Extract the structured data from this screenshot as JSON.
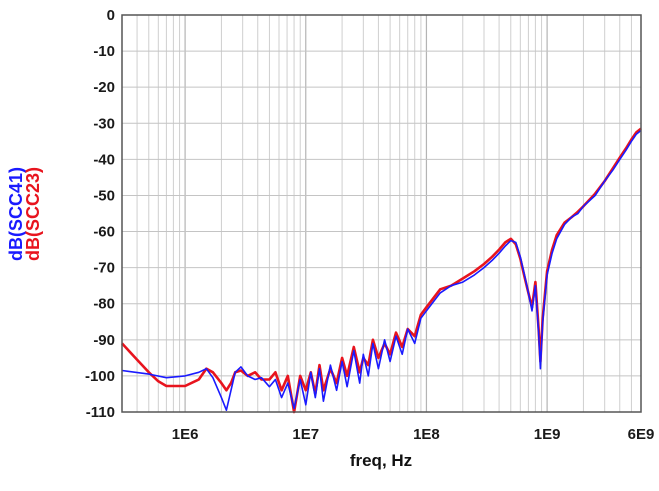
{
  "chart_data": {
    "type": "line",
    "xlabel": "freq, Hz",
    "ylabels": [
      {
        "text": "dB(SCC41)",
        "color": "#1a1aff"
      },
      {
        "text": "dB(SCC23)",
        "color": "#e8141e"
      }
    ],
    "x_scale": "log",
    "xlim": [
      300000,
      6000000000
    ],
    "ylim": [
      -110,
      0
    ],
    "x_ticks": [
      {
        "value": 1000000,
        "label": "1E6"
      },
      {
        "value": 10000000,
        "label": "1E7"
      },
      {
        "value": 100000000,
        "label": "1E8"
      },
      {
        "value": 1000000000,
        "label": "1E9"
      },
      {
        "value": 6000000000,
        "label": "6E9"
      }
    ],
    "y_ticks": [
      0,
      -10,
      -20,
      -30,
      -40,
      -50,
      -60,
      -70,
      -80,
      -90,
      -100,
      -110
    ],
    "grid": true,
    "series": [
      {
        "name": "dB(SCC41)",
        "color": "#1a1aff",
        "points": [
          [
            300000,
            -98.5
          ],
          [
            500000,
            -99.5
          ],
          [
            700000,
            -100.5
          ],
          [
            1000000,
            -100
          ],
          [
            1300000,
            -99
          ],
          [
            1500000,
            -98
          ],
          [
            1700000,
            -100.5
          ],
          [
            2000000,
            -106
          ],
          [
            2200000,
            -109.5
          ],
          [
            2400000,
            -104
          ],
          [
            2600000,
            -99
          ],
          [
            2900000,
            -97.5
          ],
          [
            3300000,
            -100
          ],
          [
            3800000,
            -101
          ],
          [
            4300000,
            -100.5
          ],
          [
            5000000,
            -103
          ],
          [
            5600000,
            -101
          ],
          [
            6300000,
            -106
          ],
          [
            7100000,
            -102
          ],
          [
            8000000,
            -109
          ],
          [
            9000000,
            -101
          ],
          [
            10000000,
            -108
          ],
          [
            11000000,
            -99
          ],
          [
            12000000,
            -106
          ],
          [
            13000000,
            -98
          ],
          [
            14000000,
            -107
          ],
          [
            16000000,
            -97
          ],
          [
            18000000,
            -104
          ],
          [
            20000000,
            -96
          ],
          [
            22000000,
            -103
          ],
          [
            25000000,
            -93
          ],
          [
            28000000,
            -102
          ],
          [
            30000000,
            -94
          ],
          [
            33000000,
            -100
          ],
          [
            36000000,
            -91
          ],
          [
            40000000,
            -98
          ],
          [
            45000000,
            -90
          ],
          [
            50000000,
            -96
          ],
          [
            56000000,
            -89
          ],
          [
            63000000,
            -94
          ],
          [
            70000000,
            -87
          ],
          [
            80000000,
            -91
          ],
          [
            90000000,
            -84
          ],
          [
            100000000,
            -82
          ],
          [
            130000000,
            -77
          ],
          [
            160000000,
            -75
          ],
          [
            200000000,
            -74
          ],
          [
            250000000,
            -72
          ],
          [
            300000000,
            -70
          ],
          [
            350000000,
            -68
          ],
          [
            400000000,
            -66
          ],
          [
            450000000,
            -64
          ],
          [
            500000000,
            -62.5
          ],
          [
            550000000,
            -63
          ],
          [
            600000000,
            -67
          ],
          [
            650000000,
            -72
          ],
          [
            700000000,
            -77
          ],
          [
            750000000,
            -82
          ],
          [
            800000000,
            -75
          ],
          [
            850000000,
            -88
          ],
          [
            880000000,
            -98
          ],
          [
            920000000,
            -85
          ],
          [
            1000000000,
            -72
          ],
          [
            1100000000,
            -66
          ],
          [
            1200000000,
            -62
          ],
          [
            1400000000,
            -58
          ],
          [
            1600000000,
            -56
          ],
          [
            1800000000,
            -55
          ],
          [
            2000000000,
            -53
          ],
          [
            2500000000,
            -50
          ],
          [
            3000000000,
            -46
          ],
          [
            3500000000,
            -43
          ],
          [
            4000000000,
            -40
          ],
          [
            4500000000,
            -37.5
          ],
          [
            5000000000,
            -35
          ],
          [
            5500000000,
            -33
          ],
          [
            6000000000,
            -32
          ]
        ]
      },
      {
        "name": "dB(SCC23)",
        "color": "#e8141e",
        "points": [
          [
            300000,
            -91
          ],
          [
            400000,
            -95.5
          ],
          [
            500000,
            -99
          ],
          [
            600000,
            -101.5
          ],
          [
            700000,
            -102.8
          ],
          [
            1000000,
            -102.8
          ],
          [
            1300000,
            -101
          ],
          [
            1500000,
            -98
          ],
          [
            1700000,
            -99
          ],
          [
            2000000,
            -102
          ],
          [
            2200000,
            -104
          ],
          [
            2400000,
            -102
          ],
          [
            2600000,
            -99
          ],
          [
            2900000,
            -98.5
          ],
          [
            3300000,
            -100
          ],
          [
            3800000,
            -99
          ],
          [
            4300000,
            -101
          ],
          [
            5000000,
            -101
          ],
          [
            5600000,
            -99
          ],
          [
            6300000,
            -104
          ],
          [
            7100000,
            -100
          ],
          [
            8000000,
            -110
          ],
          [
            9000000,
            -100
          ],
          [
            10000000,
            -104
          ],
          [
            11000000,
            -99
          ],
          [
            12000000,
            -105
          ],
          [
            13000000,
            -97
          ],
          [
            14000000,
            -104
          ],
          [
            16000000,
            -98
          ],
          [
            18000000,
            -102
          ],
          [
            20000000,
            -95
          ],
          [
            22000000,
            -100
          ],
          [
            25000000,
            -92
          ],
          [
            28000000,
            -99
          ],
          [
            30000000,
            -95
          ],
          [
            33000000,
            -97
          ],
          [
            36000000,
            -90
          ],
          [
            40000000,
            -95
          ],
          [
            45000000,
            -91
          ],
          [
            50000000,
            -94
          ],
          [
            56000000,
            -88
          ],
          [
            63000000,
            -92
          ],
          [
            70000000,
            -87
          ],
          [
            80000000,
            -89
          ],
          [
            90000000,
            -83
          ],
          [
            100000000,
            -81
          ],
          [
            130000000,
            -76
          ],
          [
            160000000,
            -75
          ],
          [
            200000000,
            -73
          ],
          [
            250000000,
            -71
          ],
          [
            300000000,
            -69
          ],
          [
            350000000,
            -67
          ],
          [
            400000000,
            -65
          ],
          [
            450000000,
            -63
          ],
          [
            500000000,
            -62
          ],
          [
            550000000,
            -63.5
          ],
          [
            600000000,
            -67.5
          ],
          [
            650000000,
            -72.5
          ],
          [
            700000000,
            -77
          ],
          [
            750000000,
            -81
          ],
          [
            800000000,
            -74
          ],
          [
            850000000,
            -87
          ],
          [
            880000000,
            -96
          ],
          [
            920000000,
            -84
          ],
          [
            1000000000,
            -71
          ],
          [
            1100000000,
            -65
          ],
          [
            1200000000,
            -61
          ],
          [
            1400000000,
            -57.5
          ],
          [
            1600000000,
            -56
          ],
          [
            1800000000,
            -54.5
          ],
          [
            2000000000,
            -53
          ],
          [
            2500000000,
            -49.5
          ],
          [
            3000000000,
            -46
          ],
          [
            3500000000,
            -42.5
          ],
          [
            4000000000,
            -39.5
          ],
          [
            4500000000,
            -37
          ],
          [
            5000000000,
            -34.5
          ],
          [
            5500000000,
            -32.5
          ],
          [
            6000000000,
            -31.5
          ]
        ]
      }
    ]
  }
}
